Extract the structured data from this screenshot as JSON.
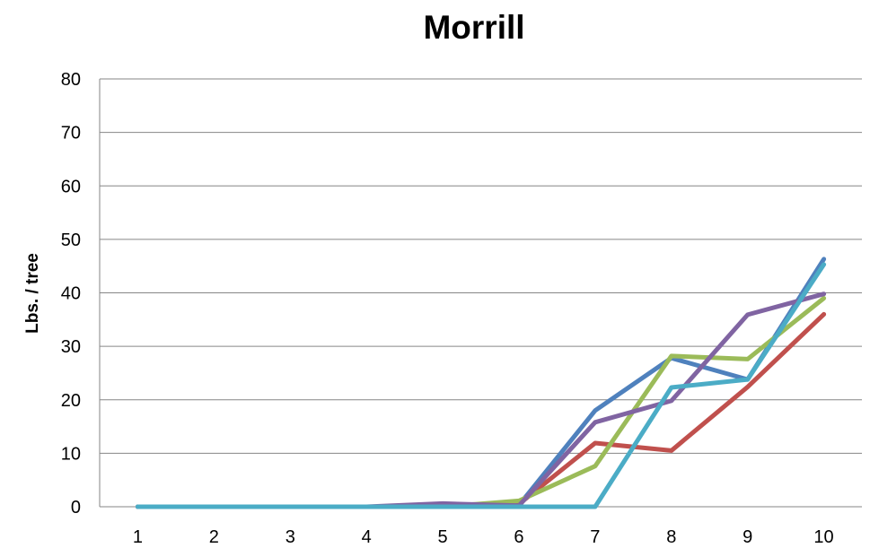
{
  "chart_data": {
    "type": "line",
    "title": "Morrill",
    "xlabel": "",
    "ylabel": "Lbs. / tree",
    "categories": [
      "1",
      "2",
      "3",
      "4",
      "5",
      "6",
      "7",
      "8",
      "9",
      "10"
    ],
    "ylim": [
      0,
      80
    ],
    "yticks": [
      "0",
      "10",
      "20",
      "30",
      "40",
      "50",
      "60",
      "70",
      "80"
    ],
    "grid": true,
    "legend": "none",
    "series": [
      {
        "color": "#4F81BD",
        "values": [
          0,
          0,
          0,
          0,
          0,
          0.3,
          18,
          27.8,
          23.8,
          46.3
        ]
      },
      {
        "color": "#C0504D",
        "values": [
          0,
          0,
          0,
          0,
          0,
          0.5,
          11.9,
          10.5,
          22.4,
          36
        ]
      },
      {
        "color": "#9BBB59",
        "values": [
          0,
          0,
          0,
          0,
          0,
          1.1,
          7.6,
          28.2,
          27.6,
          39
        ]
      },
      {
        "color": "#8064A2",
        "values": [
          0,
          0,
          0,
          0,
          0.6,
          0.2,
          15.8,
          19.8,
          35.9,
          39.8
        ]
      },
      {
        "color": "#4BACC6",
        "values": [
          0,
          0,
          0,
          0,
          0,
          0,
          0,
          22.3,
          23.8,
          45.3
        ]
      }
    ]
  }
}
